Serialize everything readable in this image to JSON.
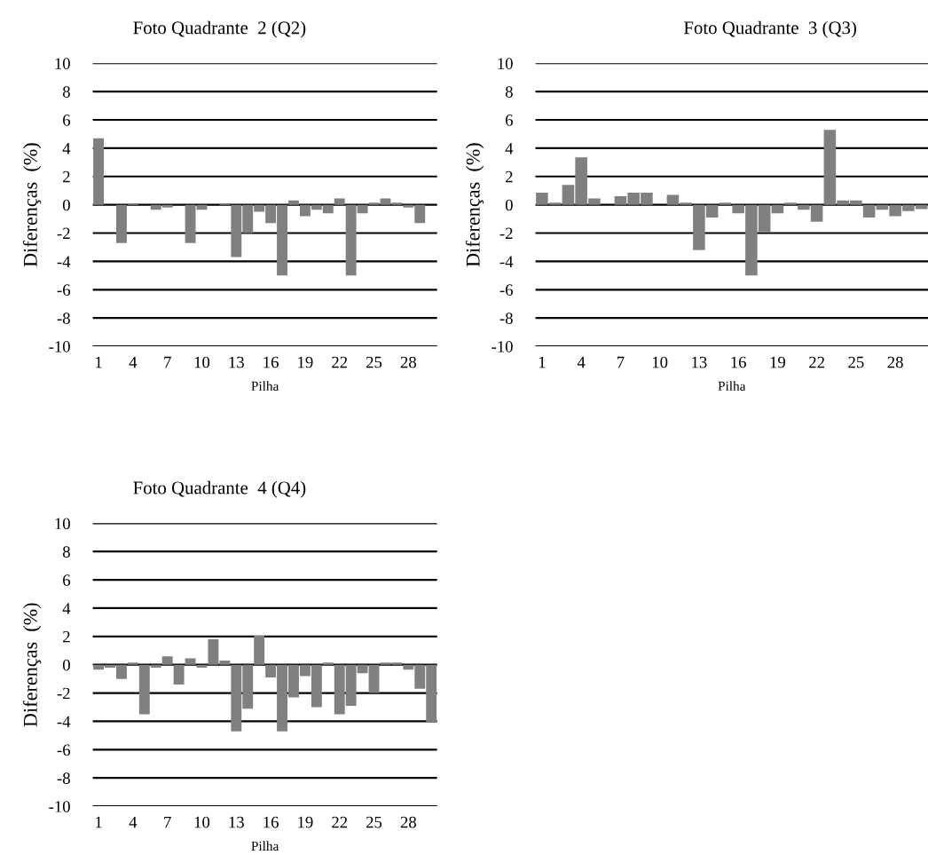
{
  "chart_data": [
    {
      "type": "bar",
      "title": "Foto Quadrante  2 (Q2)",
      "xlabel": "Pilha",
      "ylabel": "Diferenças  (%)",
      "categories": [
        "1",
        null,
        null,
        "4",
        null,
        null,
        "7",
        null,
        null,
        "10",
        null,
        null,
        "13",
        null,
        null,
        "16",
        null,
        null,
        "19",
        null,
        null,
        "22",
        null,
        null,
        "25",
        null,
        null,
        "28",
        null,
        null
      ],
      "values": [
        4.7,
        0,
        -2.7,
        0.1,
        0,
        -0.35,
        -0.2,
        0,
        -2.7,
        -0.35,
        0,
        0.1,
        -3.7,
        -2.0,
        -0.5,
        -1.3,
        -5.0,
        0.3,
        -0.8,
        -0.35,
        -0.6,
        0.45,
        -5.0,
        -0.6,
        0.15,
        0.45,
        0.15,
        -0.2,
        -1.3,
        0
      ],
      "color": "#808080",
      "ylim": [
        -10,
        10
      ],
      "yticks": [
        -10,
        -8,
        -6,
        -4,
        -2,
        0,
        2,
        4,
        6,
        8,
        10
      ],
      "grid": "y"
    },
    {
      "type": "bar",
      "title": "Foto Quadrante  3 (Q3)",
      "xlabel": "Pilha",
      "ylabel": "Diferenças  (%)",
      "categories": [
        "1",
        null,
        null,
        "4",
        null,
        null,
        "7",
        null,
        null,
        "10",
        null,
        null,
        "13",
        null,
        null,
        "16",
        null,
        null,
        "19",
        null,
        null,
        "22",
        null,
        null,
        "25",
        null,
        null,
        "28",
        null,
        null
      ],
      "values": [
        0.85,
        0.15,
        1.4,
        3.35,
        0.45,
        0,
        0.6,
        0.85,
        0.85,
        0,
        0.7,
        0.15,
        -3.2,
        -0.9,
        0.15,
        -0.6,
        -5.0,
        -1.9,
        -0.6,
        0.15,
        -0.35,
        -1.2,
        5.3,
        0.3,
        0.3,
        -0.9,
        -0.35,
        -0.8,
        -0.45,
        -0.3
      ],
      "color": "#808080",
      "ylim": [
        -10,
        10
      ],
      "yticks": [
        -10,
        -8,
        -6,
        -4,
        -2,
        0,
        2,
        4,
        6,
        8,
        10
      ],
      "grid": "y"
    },
    {
      "type": "bar",
      "title": "Foto Quadrante  4 (Q4)",
      "xlabel": "Pilha",
      "ylabel": "Diferenças  (%)",
      "categories": [
        "1",
        null,
        null,
        "4",
        null,
        null,
        "7",
        null,
        null,
        "10",
        null,
        null,
        "13",
        null,
        null,
        "16",
        null,
        null,
        "19",
        null,
        null,
        "22",
        null,
        null,
        "25",
        null,
        null,
        "28",
        null,
        null
      ],
      "values": [
        -0.35,
        -0.2,
        -1.0,
        0.15,
        -3.5,
        -0.2,
        0.6,
        -1.4,
        0.45,
        -0.2,
        1.8,
        0.3,
        -4.7,
        -3.1,
        2.05,
        -0.9,
        -4.7,
        -2.3,
        -0.8,
        -3.0,
        0.15,
        -3.5,
        -2.9,
        -0.6,
        -2.0,
        0.15,
        0.15,
        -0.35,
        -1.7,
        -4.1
      ],
      "color": "#808080",
      "ylim": [
        -10,
        10
      ],
      "yticks": [
        -10,
        -8,
        -6,
        -4,
        -2,
        0,
        2,
        4,
        6,
        8,
        10
      ],
      "grid": "y"
    }
  ]
}
